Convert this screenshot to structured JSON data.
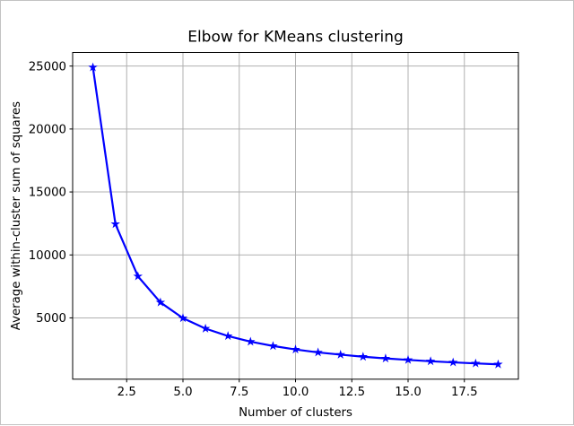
{
  "figure": {
    "background_color": "#ffffff",
    "border_color": "#c2c2c2",
    "text_color": "#000000",
    "spine_color": "#000000"
  },
  "chart_data": {
    "type": "line",
    "title": "Elbow for KMeans clustering",
    "xlabel": "Number of clusters",
    "ylabel": "Average within-cluster sum of squares",
    "x": [
      1,
      2,
      3,
      4,
      5,
      6,
      7,
      8,
      9,
      10,
      11,
      12,
      13,
      14,
      15,
      16,
      17,
      18,
      19
    ],
    "y": [
      24900,
      12450,
      8300,
      6230,
      4980,
      4150,
      3560,
      3110,
      2770,
      2490,
      2260,
      2080,
      1915,
      1780,
      1660,
      1555,
      1465,
      1385,
      1310
    ],
    "xlim": [
      0.1,
      19.9
    ],
    "ylim": [
      131,
      26080
    ],
    "xticks": [
      2.5,
      5.0,
      7.5,
      10.0,
      12.5,
      15.0,
      17.5
    ],
    "xtick_labels": [
      "2.5",
      "5.0",
      "7.5",
      "10.0",
      "12.5",
      "15.0",
      "17.5"
    ],
    "yticks": [
      5000,
      10000,
      15000,
      20000,
      25000
    ],
    "ytick_labels": [
      "5000",
      "10000",
      "15000",
      "20000",
      "25000"
    ],
    "grid": true,
    "grid_color": "#b0b0b0",
    "line_color": "#0000ff",
    "marker": "star",
    "legend_position": "none"
  }
}
